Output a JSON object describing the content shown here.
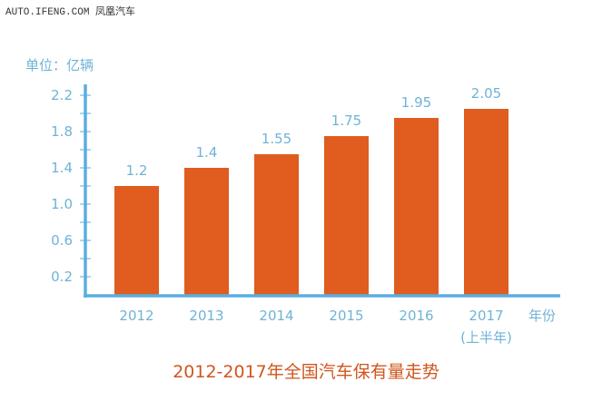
{
  "watermark": "AUTO.IFENG.COM 凤凰汽车",
  "chart_data": {
    "type": "bar",
    "title": "2012-2017年全国汽车保有量走势",
    "ylabel": "单位：亿辆",
    "xlabel": "年份",
    "categories": [
      "2012",
      "2013",
      "2014",
      "2015",
      "2016",
      "2017"
    ],
    "category_sublabels": [
      "",
      "",
      "",
      "",
      "",
      "(上半年)"
    ],
    "values": [
      1.2,
      1.4,
      1.55,
      1.75,
      1.95,
      2.05
    ],
    "data_labels": [
      "1.2",
      "1.4",
      "1.55",
      "1.75",
      "1.95",
      "2.05"
    ],
    "yticks": [
      "0.2",
      "0.6",
      "1.0",
      "1.4",
      "1.8",
      "2.2"
    ],
    "ylim": [
      0,
      2.3
    ],
    "grid": false,
    "colors": {
      "bar": "#e05c1f",
      "axis": "#5aaee0",
      "text": "#6fb3d6",
      "title": "#d0561e"
    }
  }
}
